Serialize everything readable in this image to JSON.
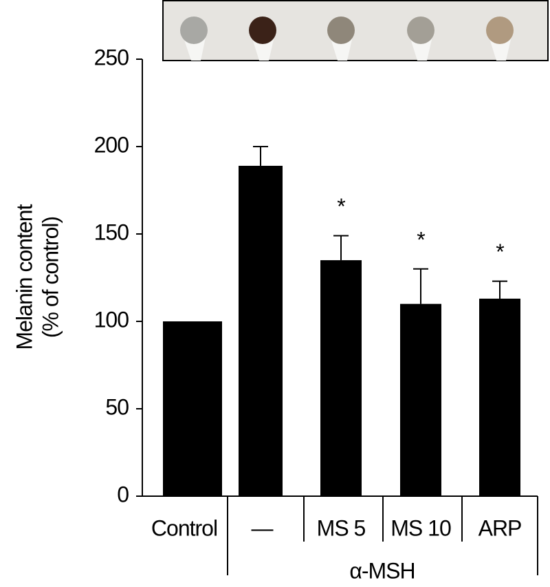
{
  "chart_data": {
    "type": "bar",
    "ylabel": [
      "Melanin content",
      "(% of control)"
    ],
    "categories": [
      "Control",
      "—",
      "MS 5",
      "MS 10",
      "ARP"
    ],
    "group_label": "α-MSH",
    "values": [
      100,
      189,
      135,
      110,
      113
    ],
    "errors": [
      null,
      11,
      14,
      20,
      10
    ],
    "annotations": [
      null,
      null,
      "*",
      "*",
      "*"
    ],
    "color": "#000000",
    "ylim": [
      0,
      250
    ],
    "yticks": [
      0,
      50,
      100,
      150,
      200,
      250
    ],
    "grid": false
  }
}
